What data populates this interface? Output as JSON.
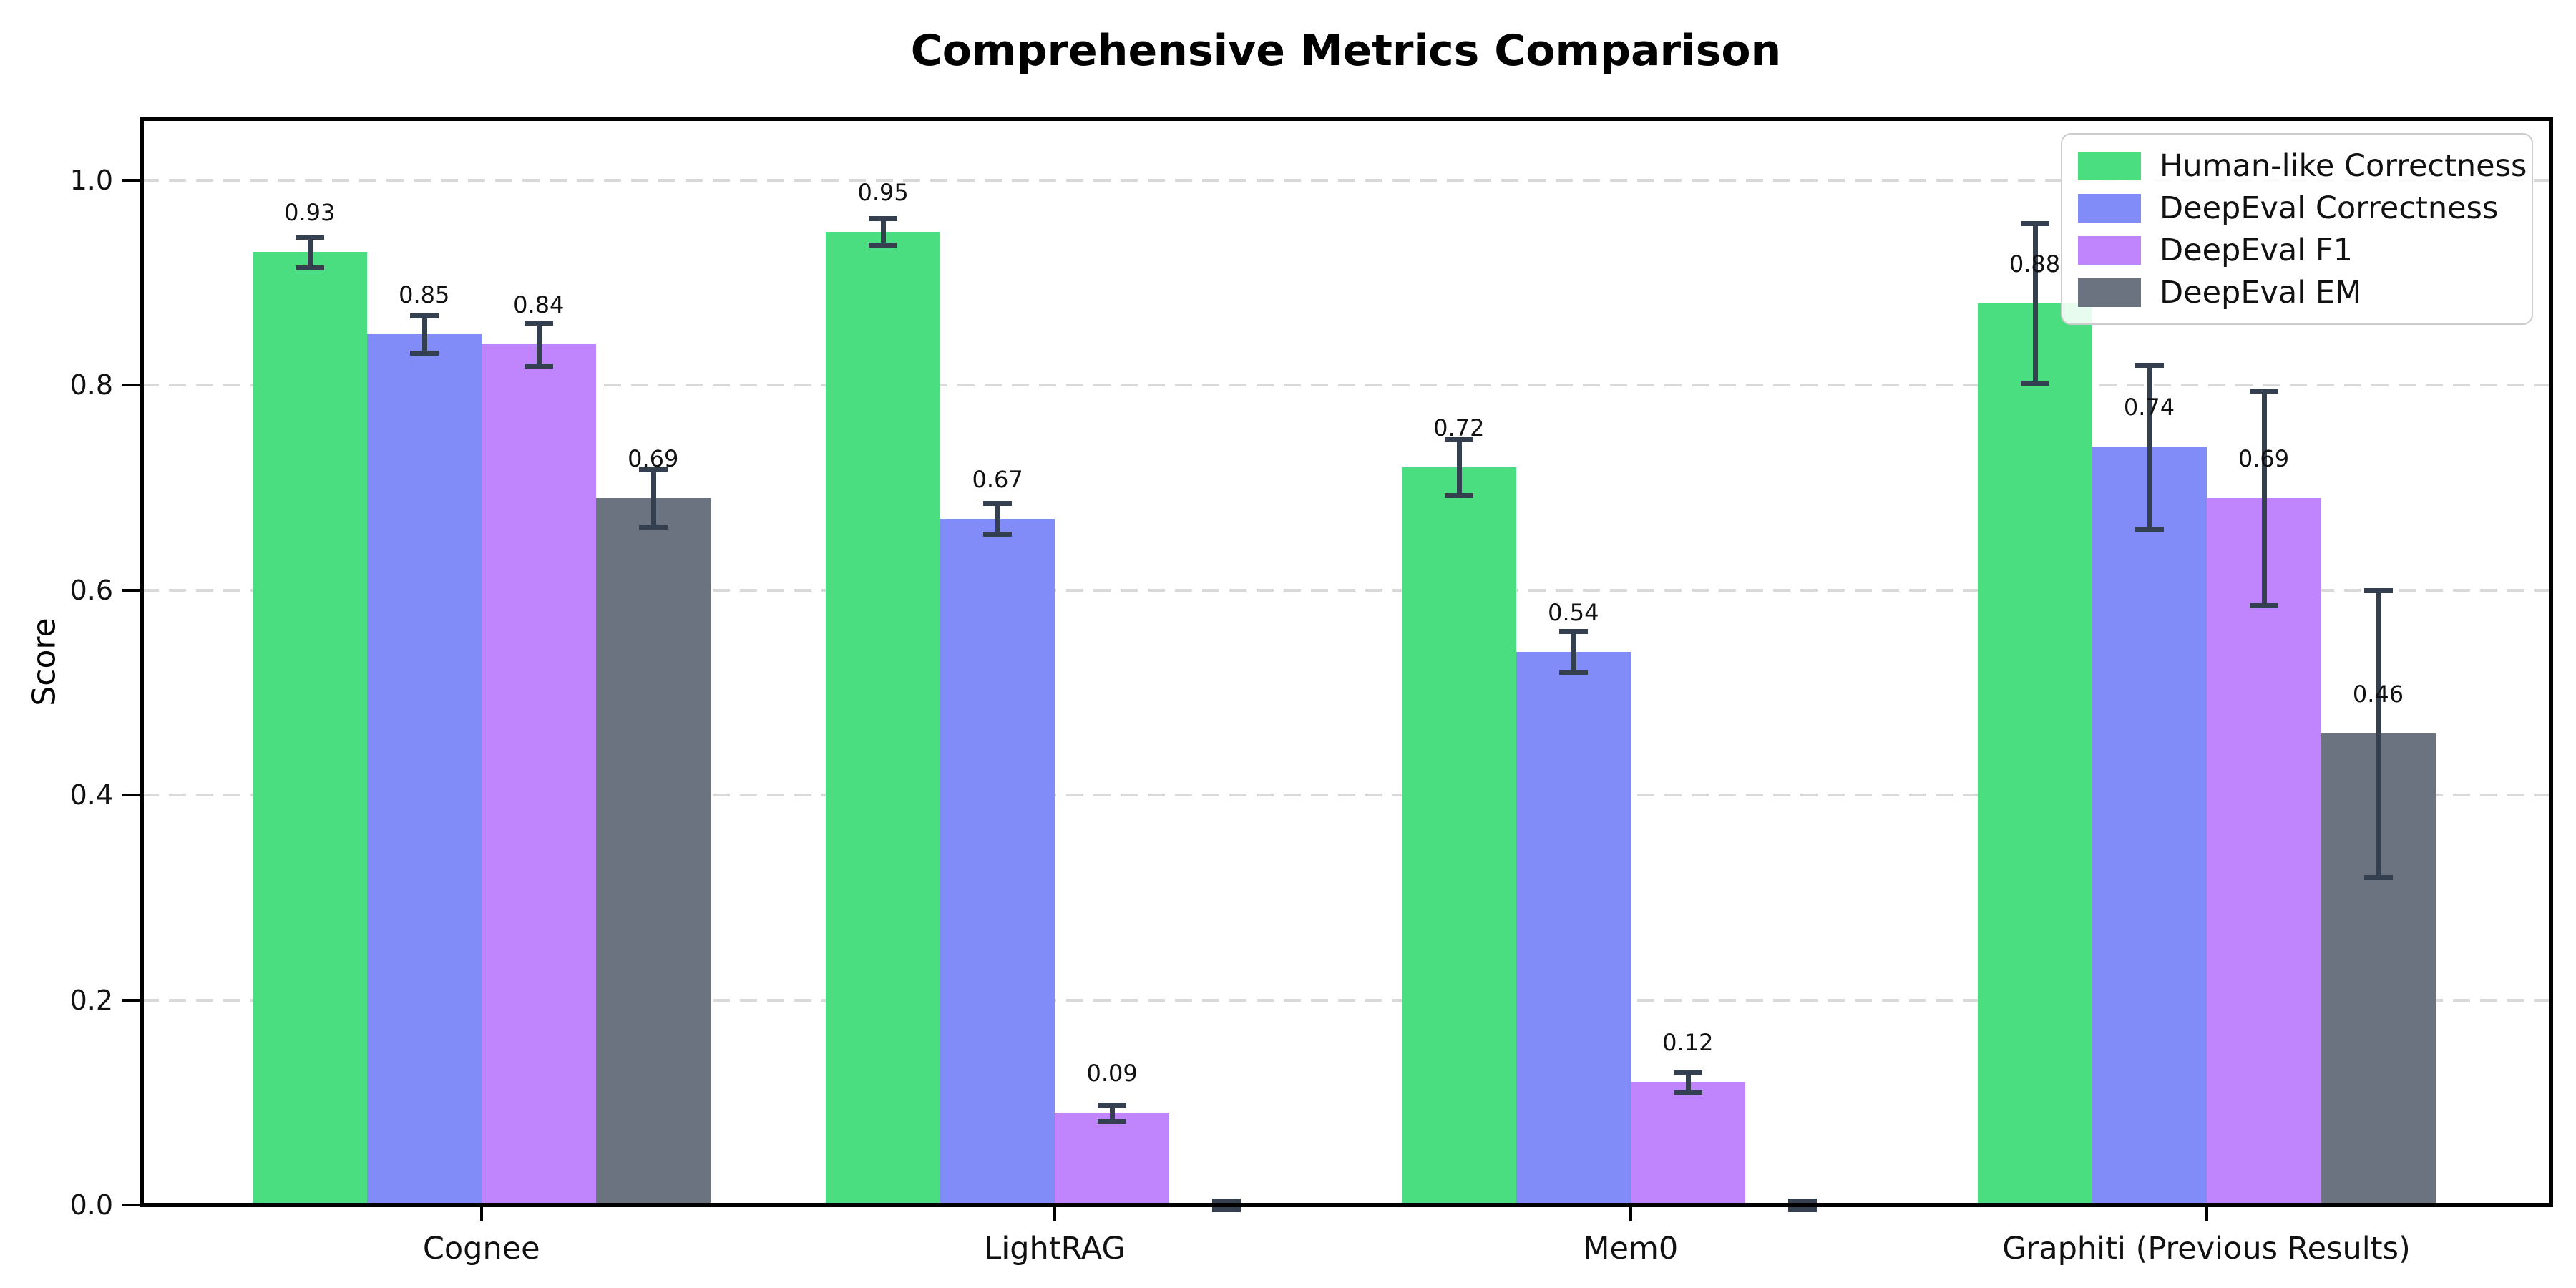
{
  "page": {
    "background": "#ffffff"
  },
  "chart_data": {
    "type": "bar",
    "title": "Comprehensive Metrics Comparison",
    "ylabel": "Score",
    "xlabel": "",
    "categories": [
      "Cognee",
      "LightRAG",
      "Mem0",
      "Graphiti (Previous Results)"
    ],
    "series": [
      {
        "name": "Human-like Correctness",
        "color": "#4ade80",
        "values": [
          0.93,
          0.95,
          0.72,
          0.88
        ],
        "errors": [
          0.015,
          0.013,
          0.027,
          0.078
        ],
        "value_labels": [
          "0.93",
          "0.95",
          "0.72",
          "0.88"
        ]
      },
      {
        "name": "DeepEval Correctness",
        "color": "#818cf8",
        "values": [
          0.85,
          0.67,
          0.54,
          0.74
        ],
        "errors": [
          0.018,
          0.015,
          0.02,
          0.08
        ],
        "value_labels": [
          "0.85",
          "0.67",
          "0.54",
          "0.74"
        ]
      },
      {
        "name": "DeepEval F1",
        "color": "#c084fc",
        "values": [
          0.84,
          0.09,
          0.12,
          0.69
        ],
        "errors": [
          0.021,
          0.008,
          0.01,
          0.105
        ],
        "value_labels": [
          "0.84",
          "0.09",
          "0.12",
          "0.69"
        ]
      },
      {
        "name": "DeepEval EM",
        "color": "#6b7280",
        "values": [
          0.69,
          0.0,
          0.0,
          0.46
        ],
        "errors": [
          0.028,
          0.004,
          0.004,
          0.14
        ],
        "value_labels": [
          "0.69",
          null,
          null,
          "0.46"
        ]
      }
    ],
    "yticks": [
      "0.0",
      "0.2",
      "0.4",
      "0.6",
      "0.8",
      "1.0"
    ],
    "ylim": [
      0,
      1.06
    ],
    "grid": {
      "axis": "y",
      "style": "dashed",
      "color": "#d9d9d9"
    },
    "legend_position": "upper right",
    "error_bar_color": "#343f50"
  }
}
